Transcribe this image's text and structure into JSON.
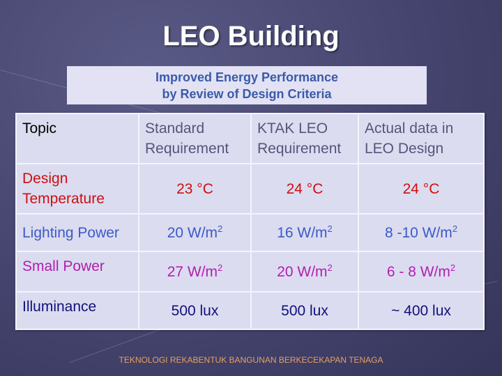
{
  "title": "LEO Building",
  "subtitle": {
    "line1": "Improved Energy Performance",
    "line2": "by Review of Design Criteria"
  },
  "table": {
    "headers": [
      {
        "line1": "Topic",
        "line2": ""
      },
      {
        "line1": "Standard",
        "line2": "Requirement"
      },
      {
        "line1": "KTAK LEO",
        "line2": "Requirement"
      },
      {
        "line1": "Actual data in",
        "line2": "LEO Design"
      }
    ],
    "rows": [
      {
        "topic_line1": "Design",
        "topic_line2": "Temperature",
        "values": [
          {
            "v": "23 °C",
            "sup": ""
          },
          {
            "v": "24 °C",
            "sup": ""
          },
          {
            "v": "24 °C",
            "sup": ""
          }
        ],
        "color": "#cc1010"
      },
      {
        "topic_line1": "Lighting Power",
        "topic_line2": "",
        "values": [
          {
            "v": "20 W/m",
            "sup": "2"
          },
          {
            "v": "16 W/m",
            "sup": "2"
          },
          {
            "v": "8 -10 W/m",
            "sup": "2"
          }
        ],
        "color": "#3a5ac8"
      },
      {
        "topic_line1": "Small Power",
        "topic_line2": "",
        "values": [
          {
            "v": "27 W/m",
            "sup": "2"
          },
          {
            "v": "20 W/m",
            "sup": "2"
          },
          {
            "v": "6 - 8 W/m",
            "sup": "2"
          }
        ],
        "color": "#b020b0"
      },
      {
        "topic_line1": "Illuminance",
        "topic_line2": "",
        "values": [
          {
            "v": "500 lux",
            "sup": ""
          },
          {
            "v": "500 lux",
            "sup": ""
          },
          {
            "v": "~ 400 lux",
            "sup": ""
          }
        ],
        "color": "#10107a"
      }
    ]
  },
  "footer": "TEKNOLOGI REKABENTUK BANGUNAN BERKECEKAPAN TENAGA"
}
